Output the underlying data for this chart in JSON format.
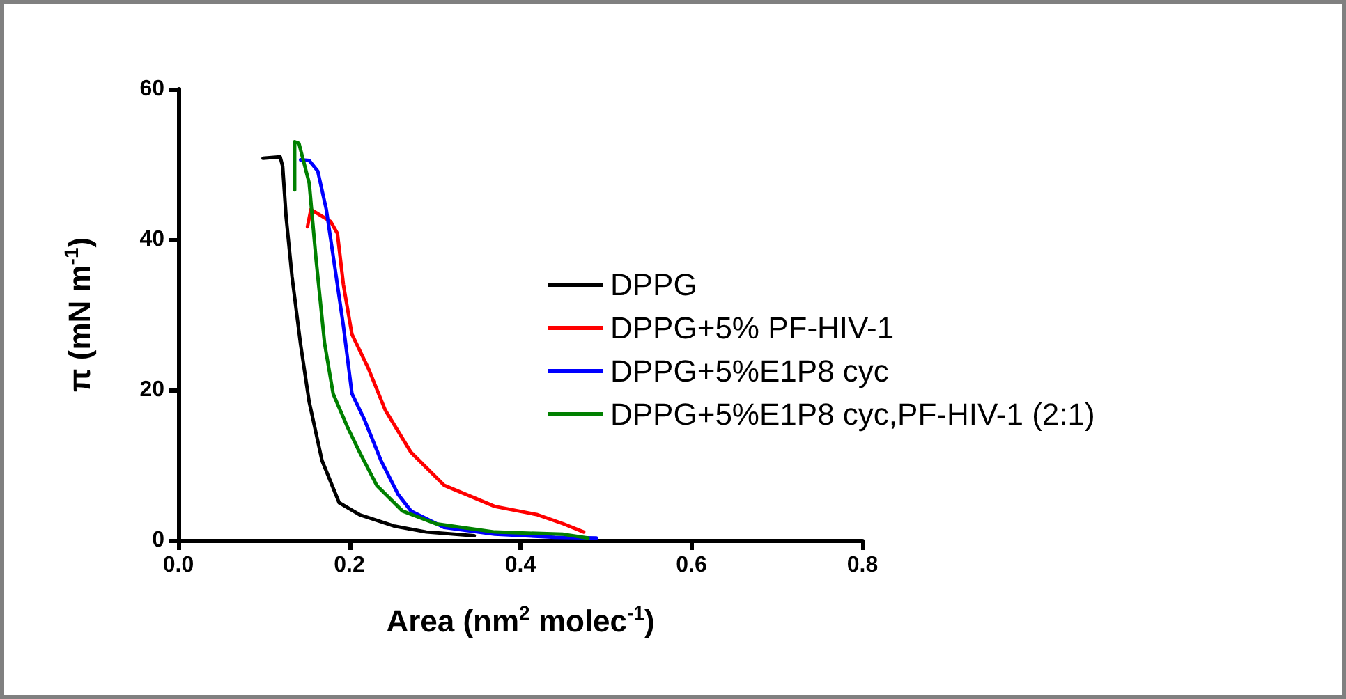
{
  "chart_data": {
    "type": "line",
    "xlabel": "Area (nm$^{2}$ molec$^{-1}$)",
    "ylabel": "π (mN m$^{-1}$)",
    "xlim": [
      0,
      0.8
    ],
    "xticks": [
      {
        "value": 0,
        "label": "0.0"
      },
      0.2,
      0.4,
      0.6,
      0.8
    ],
    "ylim": [
      0,
      60
    ],
    "yticks": [
      0,
      20,
      40,
      60
    ],
    "grid": false,
    "legend": "right",
    "marker": "none",
    "line_style": "solid",
    "series": [
      {
        "name": "DPPG",
        "color": "#000000",
        "x": [
          0.099,
          0.119,
          0.122,
          0.126,
          0.133,
          0.143,
          0.153,
          0.168,
          0.188,
          0.212,
          0.252,
          0.29,
          0.346
        ],
        "values": [
          50.8,
          51,
          49.7,
          43,
          35,
          26,
          18.4,
          10.6,
          5,
          3.4,
          1.9,
          1.1,
          0.6
        ]
      },
      {
        "name": "DPPG+5% PF-HIV-1",
        "color": "#ff0000",
        "x": [
          0.151,
          0.155,
          0.178,
          0.186,
          0.193,
          0.203,
          0.222,
          0.242,
          0.272,
          0.311,
          0.37,
          0.42,
          0.45,
          0.474
        ],
        "values": [
          41.7,
          44,
          42.4,
          40.8,
          34,
          27.4,
          22.9,
          17.3,
          11.7,
          7.3,
          4.5,
          3.4,
          2.2,
          1.1
        ]
      },
      {
        "name": "DPPG+5%E1P8 cyc",
        "color": "#0000ff",
        "x": [
          0.143,
          0.153,
          0.163,
          0.173,
          0.183,
          0.193,
          0.203,
          0.217,
          0.237,
          0.257,
          0.272,
          0.311,
          0.37,
          0.44,
          0.489
        ],
        "values": [
          50.6,
          50.5,
          49.1,
          44,
          36.3,
          28.5,
          19.5,
          16.2,
          10.6,
          6.1,
          3.9,
          1.7,
          0.8,
          0.4,
          0.3
        ]
      },
      {
        "name": "DPPG+5%E1P8 cyc,PF-HIV-1 (2:1)",
        "color": "#008000",
        "x": [
          0.136,
          0.136,
          0.141,
          0.153,
          0.161,
          0.171,
          0.181,
          0.198,
          0.212,
          0.232,
          0.262,
          0.301,
          0.37,
          0.45,
          0.479
        ],
        "values": [
          46.6,
          53,
          52.8,
          47.5,
          37.4,
          26.2,
          19.5,
          15,
          11.7,
          7.3,
          3.9,
          2.2,
          1.1,
          0.8,
          0.3
        ]
      }
    ]
  }
}
